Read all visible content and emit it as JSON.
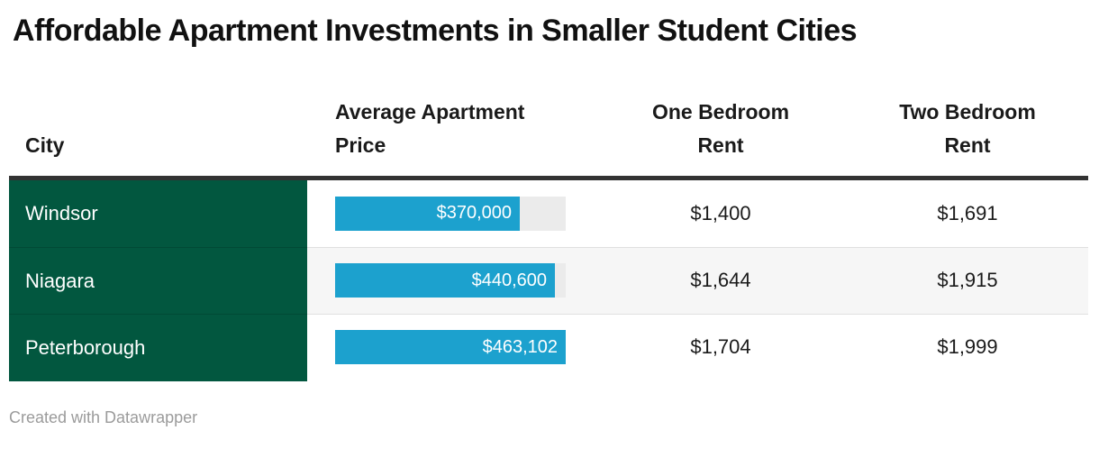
{
  "title": "Affordable Apartment Investments in Smaller Student Cities",
  "table": {
    "columns": [
      {
        "label": "City"
      },
      {
        "label": "Average Apartment Price"
      },
      {
        "label": "One Bedroom Rent"
      },
      {
        "label": "Two Bedroom Rent"
      }
    ],
    "rows": [
      {
        "city": "Windsor",
        "price_label": "$370,000",
        "price_value": 370000,
        "one_bed": "$1,400",
        "two_bed": "$1,691"
      },
      {
        "city": "Niagara",
        "price_label": "$440,600",
        "price_value": 440600,
        "one_bed": "$1,644",
        "two_bed": "$1,915"
      },
      {
        "city": "Peterborough",
        "price_label": "$463,102",
        "price_value": 463102,
        "one_bed": "$1,704",
        "two_bed": "$1,999"
      }
    ],
    "bar_max": 463102
  },
  "chart_data": {
    "type": "table",
    "title": "Affordable Apartment Investments in Smaller Student Cities",
    "columns": [
      "City",
      "Average Apartment Price",
      "One Bedroom Rent",
      "Two Bedroom Rent"
    ],
    "rows": [
      [
        "Windsor",
        370000,
        1400,
        1691
      ],
      [
        "Niagara",
        440600,
        1644,
        1915
      ],
      [
        "Peterborough",
        463102,
        1704,
        1999
      ]
    ],
    "bar_column": "Average Apartment Price",
    "bar_range": [
      0,
      463102
    ],
    "bar_color": "#1CA1CE",
    "row_header_color": "#02573F"
  },
  "footer": {
    "credit": "Created with Datawrapper"
  },
  "colors": {
    "green": "#02573F",
    "bar_blue": "#1CA1CE",
    "bar_track": "#ebebeb",
    "stripe": "#f6f6f6",
    "header_border": "#333333"
  }
}
